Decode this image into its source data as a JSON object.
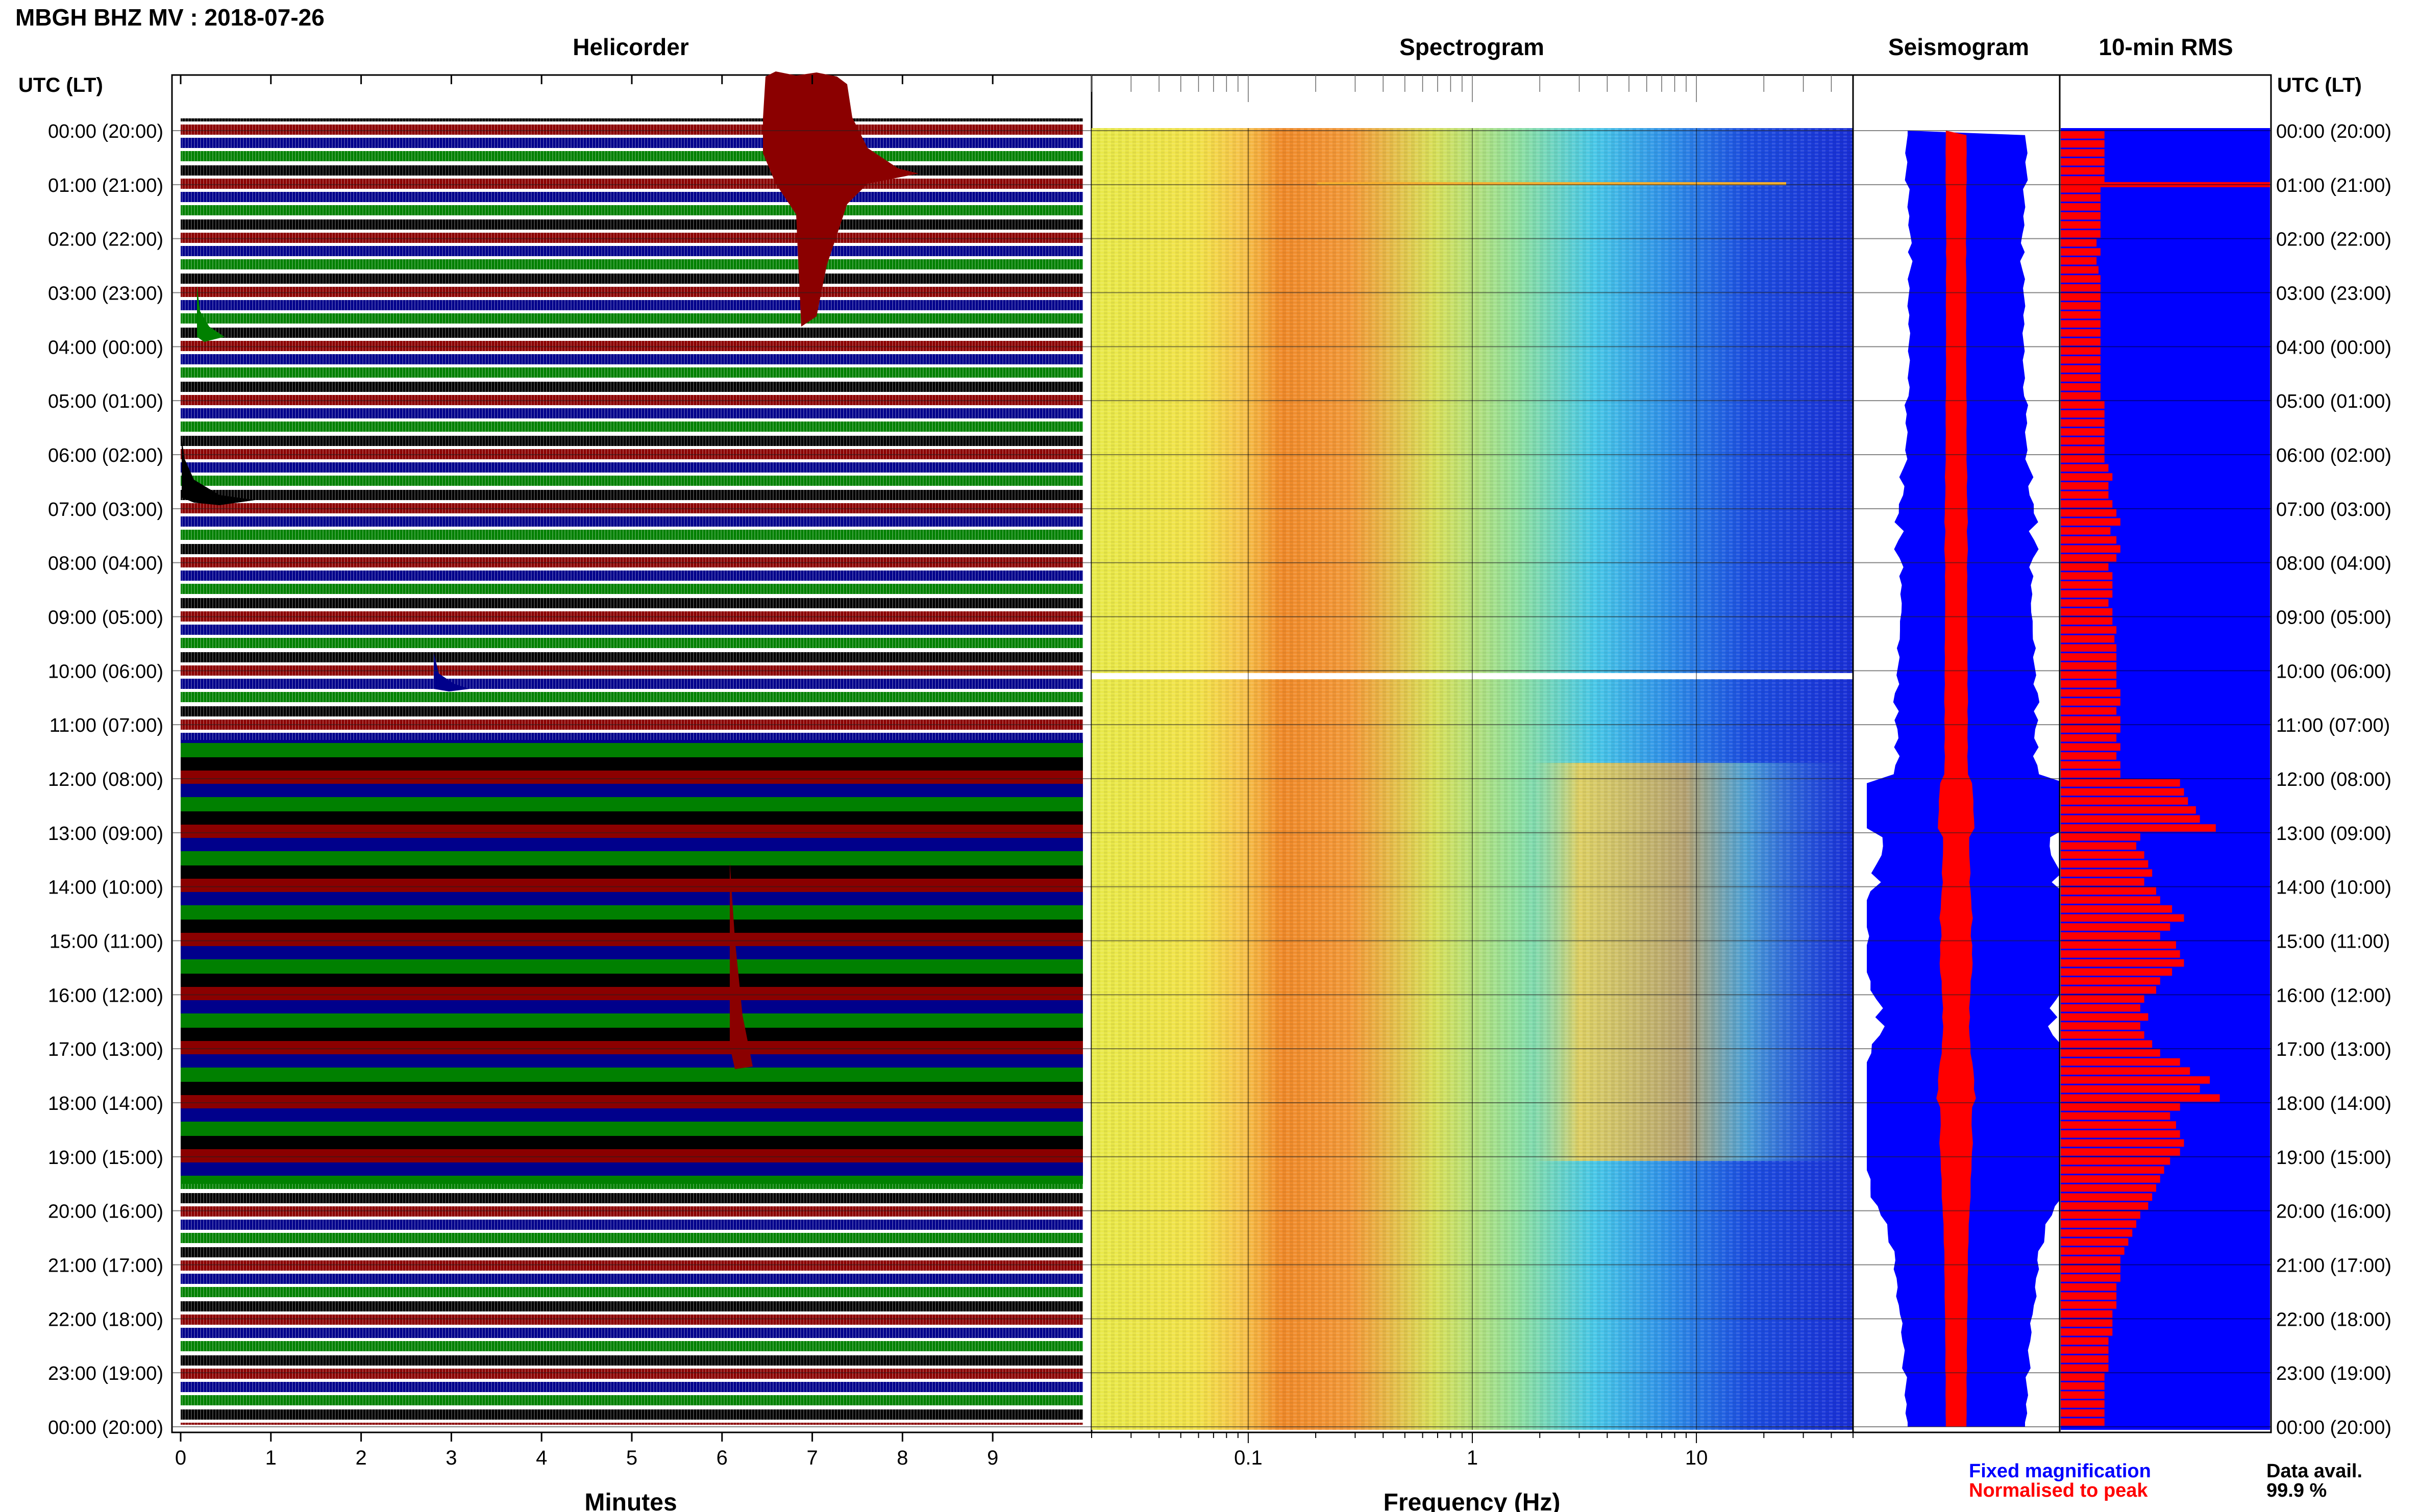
{
  "header": {
    "title": "MBGH BHZ MV : 2018-07-26",
    "utc_label_left": "UTC (LT)",
    "utc_label_right": "UTC (LT)"
  },
  "panels": {
    "helicorder": "Helicorder",
    "spectrogram": "Spectrogram",
    "seismogram": "Seismogram",
    "rms": "10-min RMS"
  },
  "axes": {
    "minutes_label": "Minutes",
    "frequency_label": "Frequency (Hz)",
    "minute_ticks": [
      "0",
      "1",
      "2",
      "3",
      "4",
      "5",
      "6",
      "7",
      "8",
      "9"
    ],
    "frequency_ticks": [
      "0.1",
      "1",
      "10"
    ]
  },
  "time_labels": [
    "00:00 (20:00)",
    "01:00 (21:00)",
    "02:00 (22:00)",
    "03:00 (23:00)",
    "04:00 (00:00)",
    "05:00 (01:00)",
    "06:00 (02:00)",
    "07:00 (03:00)",
    "08:00 (04:00)",
    "09:00 (05:00)",
    "10:00 (06:00)",
    "11:00 (07:00)",
    "12:00 (08:00)",
    "13:00 (09:00)",
    "14:00 (10:00)",
    "15:00 (11:00)",
    "16:00 (12:00)",
    "17:00 (13:00)",
    "18:00 (14:00)",
    "19:00 (15:00)",
    "20:00 (16:00)",
    "21:00 (17:00)",
    "22:00 (18:00)",
    "23:00 (19:00)",
    "00:00 (20:00)"
  ],
  "legend": {
    "fixed": "Fixed magnification",
    "normalised": "Normalised to peak",
    "data_avail_label": "Data avail.",
    "data_avail_value": "99.9 %"
  },
  "colors": {
    "trace_cycle": [
      "#000000",
      "#8b0000",
      "#00008b",
      "#008000"
    ],
    "fixed": "#0000ff",
    "normalised": "#ff0000"
  },
  "chart_data": {
    "type": "heatmap",
    "helicorder_x": {
      "label": "Minutes",
      "range": [
        0,
        10
      ]
    },
    "spectrogram_x": {
      "label": "Frequency (Hz)",
      "scale": "log",
      "range": [
        0.02,
        50
      ]
    },
    "y": {
      "label": "UTC (LT)",
      "range_hours": [
        0,
        24
      ]
    },
    "rms_relative_amplitude": [
      0.22,
      0.22,
      0.22,
      0.22,
      0.22,
      0.22,
      0.2,
      0.2,
      0.2,
      0.2,
      0.2,
      0.2,
      0.18,
      0.2,
      0.18,
      0.19,
      0.2,
      0.2,
      0.2,
      0.2,
      0.2,
      0.2,
      0.2,
      0.2,
      0.2,
      0.2,
      0.2,
      0.2,
      0.2,
      0.2,
      0.22,
      0.22,
      0.22,
      0.22,
      0.22,
      0.22,
      0.22,
      0.24,
      0.26,
      0.24,
      0.24,
      0.26,
      0.28,
      0.3,
      0.25,
      0.28,
      0.3,
      0.28,
      0.24,
      0.26,
      0.26,
      0.26,
      0.24,
      0.26,
      0.26,
      0.28,
      0.27,
      0.28,
      0.28,
      0.28,
      0.28,
      0.28,
      0.3,
      0.3,
      0.28,
      0.3,
      0.3,
      0.28,
      0.3,
      0.28,
      0.3,
      0.3,
      0.6,
      0.62,
      0.64,
      0.68,
      0.7,
      0.78,
      0.4,
      0.38,
      0.42,
      0.44,
      0.46,
      0.42,
      0.48,
      0.5,
      0.56,
      0.62,
      0.55,
      0.5,
      0.58,
      0.6,
      0.62,
      0.56,
      0.5,
      0.48,
      0.42,
      0.4,
      0.44,
      0.4,
      0.42,
      0.46,
      0.5,
      0.6,
      0.65,
      0.75,
      0.7,
      0.8,
      0.6,
      0.55,
      0.58,
      0.6,
      0.62,
      0.6,
      0.55,
      0.52,
      0.5,
      0.48,
      0.46,
      0.44,
      0.4,
      0.38,
      0.36,
      0.34,
      0.32,
      0.3,
      0.3,
      0.3,
      0.28,
      0.28,
      0.28,
      0.26,
      0.26,
      0.26,
      0.24,
      0.24,
      0.24,
      0.24,
      0.22,
      0.22,
      0.22,
      0.22,
      0.22,
      0.22
    ],
    "rms_spikes_hours": [
      1.0
    ],
    "data_availability_percent": 99.9
  }
}
